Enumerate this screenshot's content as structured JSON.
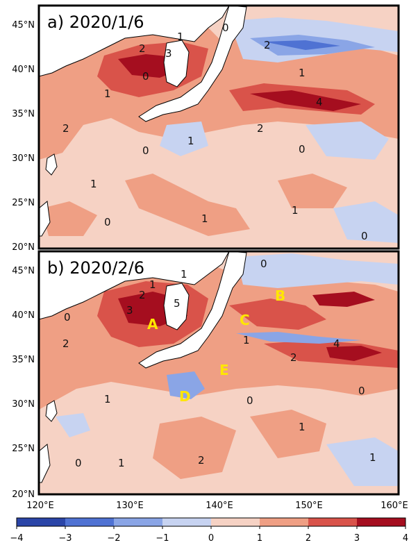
{
  "panels": [
    {
      "title": "a) 2020/1/6",
      "lat_ticks": [
        "45°N",
        "40°N",
        "35°N",
        "30°N",
        "25°N",
        "20°N"
      ],
      "contour_labels": [
        "0",
        "1",
        "2",
        "1",
        "0",
        "2",
        "3",
        "1",
        "4",
        "2",
        "1",
        "0",
        "2",
        "1",
        "0",
        "1",
        "0",
        "1",
        "0"
      ]
    },
    {
      "title": "b) 2020/2/6",
      "lat_ticks": [
        "45°N",
        "40°N",
        "35°N",
        "30°N",
        "25°N",
        "20°N"
      ],
      "region_labels": [
        "A",
        "B",
        "C",
        "D",
        "E"
      ],
      "contour_labels": [
        "0",
        "1",
        "2",
        "1",
        "0",
        "2",
        "3",
        "1",
        "4",
        "5",
        "2",
        "1",
        "0",
        "1",
        "2",
        "0",
        "1",
        "0",
        "1"
      ]
    }
  ],
  "lon_ticks": [
    "120°E",
    "130°E",
    "140°E",
    "150°E",
    "160°E"
  ],
  "colorbar": {
    "ticks": [
      "−4",
      "−3",
      "−2",
      "−1",
      "0",
      "1",
      "2",
      "3",
      "4"
    ],
    "colors": [
      "#2b45a8",
      "#4f72d3",
      "#8aa5e6",
      "#c7d3f1",
      "#f6d2c4",
      "#ef9f84",
      "#d9534a",
      "#a50e1f"
    ]
  },
  "colors": {
    "land": "#ffffff",
    "sea_base": "#f6d2c4",
    "warm1": "#ef9f84",
    "warm2": "#d9534a",
    "warm3": "#a50e1f",
    "cool1": "#c7d3f1",
    "cool2": "#8aa5e6",
    "cool3": "#4f72d3",
    "cool4": "#2b45a8"
  }
}
